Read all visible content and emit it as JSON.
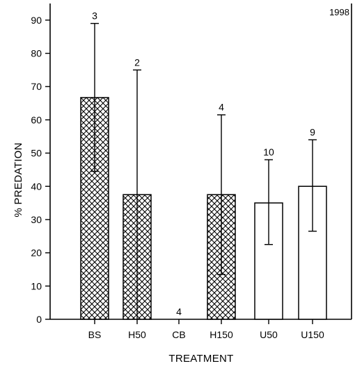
{
  "chart_data": {
    "type": "bar",
    "annotation": "1998",
    "xlabel": "TREATMENT",
    "ylabel": "% PREDATION",
    "ylim": [
      0,
      95
    ],
    "yticks": [
      0,
      10,
      20,
      30,
      40,
      50,
      60,
      70,
      80,
      90
    ],
    "categories": [
      "BS",
      "H50",
      "CB",
      "H150",
      "U50",
      "U150"
    ],
    "values": [
      66.7,
      37.5,
      0,
      37.5,
      35,
      40
    ],
    "error_low": [
      44.5,
      0,
      0,
      13.5,
      22.5,
      26.5
    ],
    "error_high": [
      89,
      75,
      0,
      61.5,
      48,
      54
    ],
    "sample_sizes": [
      "3",
      "2",
      "4",
      "4",
      "10",
      "9"
    ],
    "fill_patterns": [
      "crosshatch",
      "crosshatch",
      "none",
      "crosshatch",
      "open",
      "open"
    ],
    "colors": {
      "axis": "#000000",
      "bar_fill": "#ffffff",
      "hatch": "#000000"
    }
  }
}
